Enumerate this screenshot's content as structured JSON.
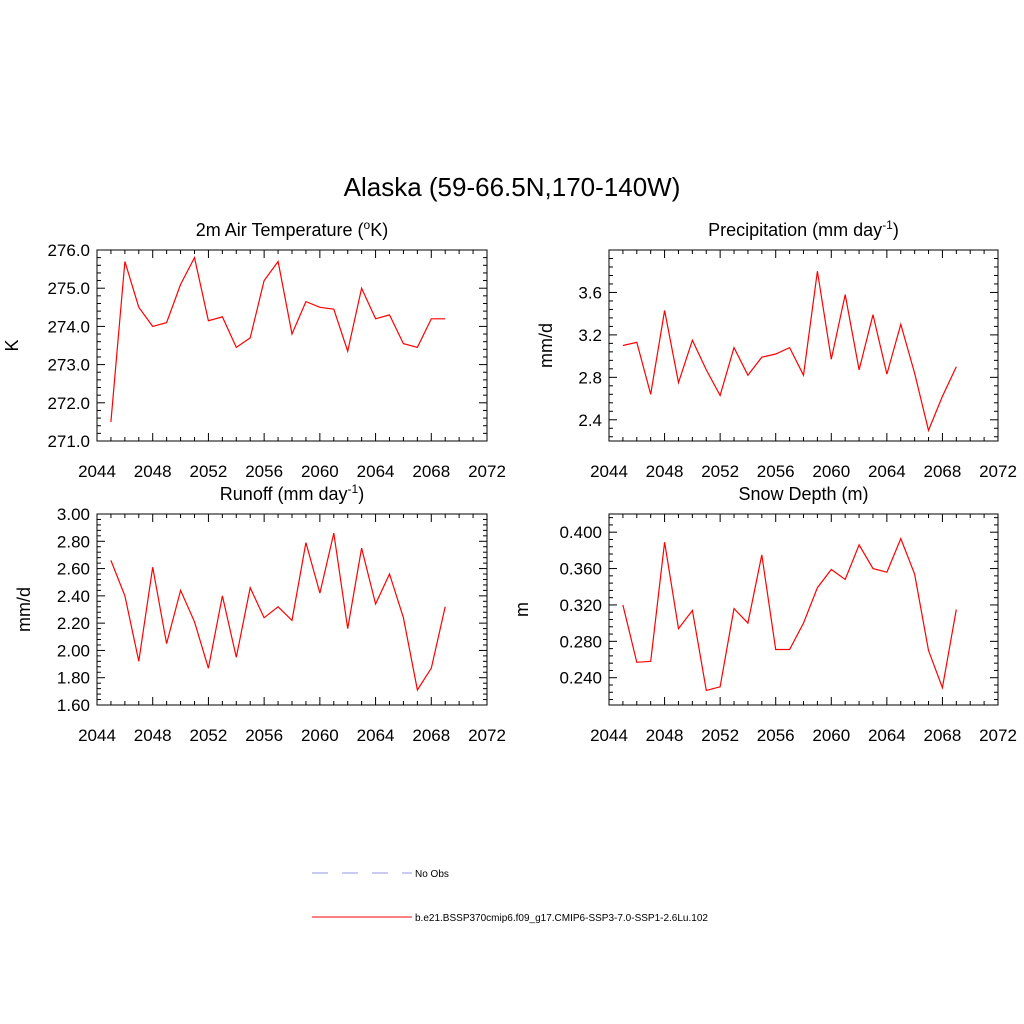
{
  "figure": {
    "title": "Alaska (59-66.5N,170-140W)"
  },
  "legend": {
    "entries": [
      {
        "label": "No Obs",
        "color": "#aaaaee",
        "dash": true
      },
      {
        "label": "b.e21.BSSP370cmip6.f09_g17.CMIP6-SSP3-7.0-SSP1-2.6Lu.102",
        "color": "#ff0000",
        "dash": false
      }
    ]
  },
  "chart_data": [
    {
      "type": "line",
      "title": "2m Air Temperature (",
      "title_sup": "o",
      "title_tail": "K)",
      "xlabel": "",
      "ylabel": "K",
      "xlim": [
        2044,
        2072
      ],
      "ylim": [
        271.0,
        276.0
      ],
      "xticks": [
        2044,
        2048,
        2052,
        2056,
        2060,
        2064,
        2068,
        2072
      ],
      "yticks": [
        271.0,
        272.0,
        273.0,
        274.0,
        275.0,
        276.0
      ],
      "ytick_decimals": 1,
      "series": [
        {
          "color": "#ff0000",
          "x": [
            2045,
            2046,
            2047,
            2048,
            2049,
            2050,
            2051,
            2052,
            2053,
            2054,
            2055,
            2056,
            2057,
            2058,
            2059,
            2060,
            2061,
            2062,
            2063,
            2064,
            2065,
            2066,
            2067,
            2068,
            2069
          ],
          "y": [
            271.5,
            275.7,
            274.5,
            274.0,
            274.1,
            275.1,
            275.8,
            274.15,
            274.25,
            273.45,
            273.7,
            275.2,
            275.7,
            273.8,
            274.65,
            274.5,
            274.45,
            273.35,
            275.0,
            274.2,
            274.3,
            273.55,
            273.45,
            274.2,
            274.2
          ]
        }
      ]
    },
    {
      "type": "line",
      "title": "Precipitation (mm day",
      "title_sup": "-1",
      "title_tail": ")",
      "xlabel": "",
      "ylabel": "mm/d",
      "xlim": [
        2044,
        2072
      ],
      "ylim": [
        2.2,
        4.0
      ],
      "xticks": [
        2044,
        2048,
        2052,
        2056,
        2060,
        2064,
        2068,
        2072
      ],
      "yticks": [
        2.4,
        2.8,
        3.2,
        3.6
      ],
      "ytick_decimals": 1,
      "series": [
        {
          "color": "#ff0000",
          "x": [
            2045,
            2046,
            2047,
            2048,
            2049,
            2050,
            2051,
            2052,
            2053,
            2054,
            2055,
            2056,
            2057,
            2058,
            2059,
            2060,
            2061,
            2062,
            2063,
            2064,
            2065,
            2066,
            2067,
            2068,
            2069
          ],
          "y": [
            3.1,
            3.13,
            2.64,
            3.43,
            2.75,
            3.15,
            2.87,
            2.63,
            3.08,
            2.82,
            2.99,
            3.02,
            3.08,
            2.82,
            3.8,
            2.97,
            3.58,
            2.87,
            3.39,
            2.83,
            3.3,
            2.84,
            2.3,
            2.62,
            2.9
          ]
        }
      ]
    },
    {
      "type": "line",
      "title": "Runoff (mm day",
      "title_sup": "-1",
      "title_tail": ")",
      "xlabel": "",
      "ylabel": "mm/d",
      "xlim": [
        2044,
        2072
      ],
      "ylim": [
        1.6,
        3.0
      ],
      "xticks": [
        2044,
        2048,
        2052,
        2056,
        2060,
        2064,
        2068,
        2072
      ],
      "yticks": [
        1.6,
        1.8,
        2.0,
        2.2,
        2.4,
        2.6,
        2.8,
        3.0
      ],
      "ytick_decimals": 2,
      "series": [
        {
          "color": "#ff0000",
          "x": [
            2045,
            2046,
            2047,
            2048,
            2049,
            2050,
            2051,
            2052,
            2053,
            2054,
            2055,
            2056,
            2057,
            2058,
            2059,
            2060,
            2061,
            2062,
            2063,
            2064,
            2065,
            2066,
            2067,
            2068,
            2069
          ],
          "y": [
            2.66,
            2.4,
            1.92,
            2.61,
            2.05,
            2.44,
            2.21,
            1.87,
            2.4,
            1.95,
            2.46,
            2.24,
            2.32,
            2.22,
            2.79,
            2.42,
            2.86,
            2.16,
            2.75,
            2.34,
            2.56,
            2.24,
            1.71,
            1.87,
            2.32
          ]
        }
      ]
    },
    {
      "type": "line",
      "title": "Snow Depth (m)",
      "title_sup": "",
      "title_tail": "",
      "xlabel": "",
      "ylabel": "m",
      "xlim": [
        2044,
        2072
      ],
      "ylim": [
        0.21,
        0.42
      ],
      "xticks": [
        2044,
        2048,
        2052,
        2056,
        2060,
        2064,
        2068,
        2072
      ],
      "yticks": [
        0.24,
        0.28,
        0.32,
        0.36,
        0.4
      ],
      "ytick_decimals": 3,
      "series": [
        {
          "color": "#ff0000",
          "x": [
            2045,
            2046,
            2047,
            2048,
            2049,
            2050,
            2051,
            2052,
            2053,
            2054,
            2055,
            2056,
            2057,
            2058,
            2059,
            2060,
            2061,
            2062,
            2063,
            2064,
            2065,
            2066,
            2067,
            2068,
            2069
          ],
          "y": [
            0.32,
            0.257,
            0.258,
            0.389,
            0.294,
            0.314,
            0.226,
            0.23,
            0.316,
            0.3,
            0.375,
            0.271,
            0.271,
            0.3,
            0.339,
            0.359,
            0.348,
            0.386,
            0.36,
            0.356,
            0.393,
            0.354,
            0.27,
            0.229,
            0.315
          ]
        }
      ]
    }
  ]
}
